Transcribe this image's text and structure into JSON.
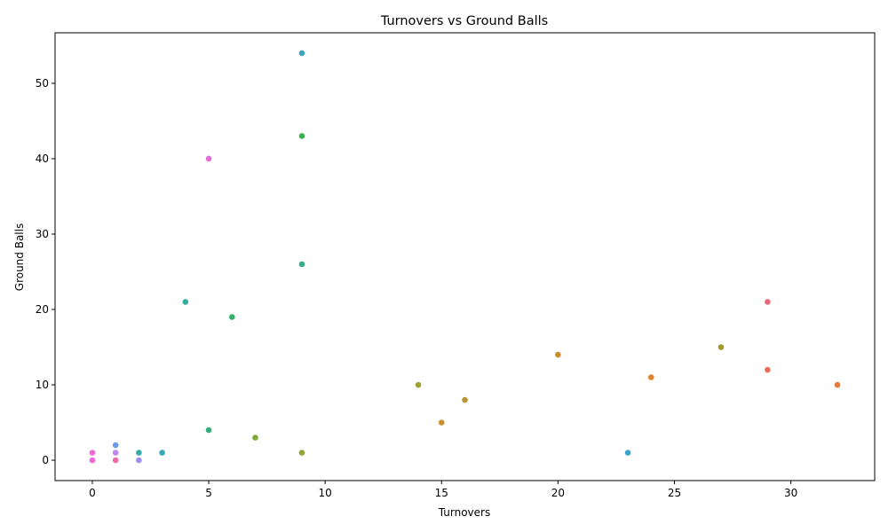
{
  "chart_data": {
    "type": "scatter",
    "title": "Turnovers vs Ground Balls",
    "xlabel": "Turnovers",
    "ylabel": "Ground Balls",
    "xlim": [
      -1.6,
      33.6
    ],
    "ylim": [
      -2.7,
      56.7
    ],
    "xticks": [
      0,
      5,
      10,
      15,
      20,
      25,
      30
    ],
    "yticks": [
      0,
      10,
      20,
      30,
      40,
      50
    ],
    "grid": false,
    "legend": "none",
    "points": [
      {
        "x": 29,
        "y": 21,
        "color": "#e8697a"
      },
      {
        "x": 29,
        "y": 12,
        "color": "#e8705a"
      },
      {
        "x": 32,
        "y": 10,
        "color": "#e77a3a"
      },
      {
        "x": 24,
        "y": 11,
        "color": "#e0832f"
      },
      {
        "x": 20,
        "y": 14,
        "color": "#c98d2f"
      },
      {
        "x": 15,
        "y": 5,
        "color": "#c99030"
      },
      {
        "x": 16,
        "y": 8,
        "color": "#b89632"
      },
      {
        "x": 27,
        "y": 15,
        "color": "#a59a32"
      },
      {
        "x": 14,
        "y": 10,
        "color": "#9ea035"
      },
      {
        "x": 9,
        "y": 1,
        "color": "#95a337"
      },
      {
        "x": 7,
        "y": 3,
        "color": "#7fa836"
      },
      {
        "x": 9,
        "y": 43,
        "color": "#3cb24c"
      },
      {
        "x": 6,
        "y": 19,
        "color": "#34b067"
      },
      {
        "x": 5,
        "y": 4,
        "color": "#33ae79"
      },
      {
        "x": 9,
        "y": 26,
        "color": "#35ad8b"
      },
      {
        "x": 4,
        "y": 21,
        "color": "#36ab9b"
      },
      {
        "x": 2,
        "y": 1,
        "color": "#37aaa6"
      },
      {
        "x": 3,
        "y": 1,
        "color": "#38a8b4"
      },
      {
        "x": 9,
        "y": 54,
        "color": "#3aa7bf"
      },
      {
        "x": 23,
        "y": 1,
        "color": "#3ba5cd"
      },
      {
        "x": 1,
        "y": 2,
        "color": "#6c9be9"
      },
      {
        "x": 2,
        "y": 0,
        "color": "#9f8ef0"
      },
      {
        "x": 1,
        "y": 1,
        "color": "#c187ee"
      },
      {
        "x": 5,
        "y": 40,
        "color": "#e46ad6"
      },
      {
        "x": 0,
        "y": 1,
        "color": "#ee6ad0"
      },
      {
        "x": 0,
        "y": 0,
        "color": "#f067d8"
      },
      {
        "x": 1,
        "y": 0,
        "color": "#f06aa6"
      }
    ]
  }
}
